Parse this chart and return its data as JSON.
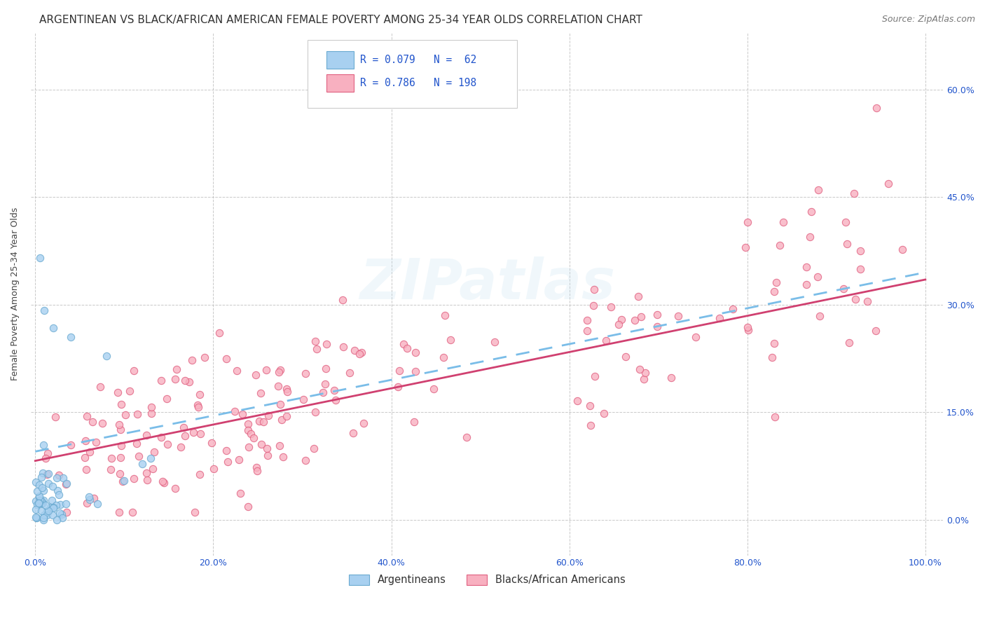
{
  "title": "ARGENTINEAN VS BLACK/AFRICAN AMERICAN FEMALE POVERTY AMONG 25-34 YEAR OLDS CORRELATION CHART",
  "source": "Source: ZipAtlas.com",
  "ylabel_label": "Female Poverty Among 25-34 Year Olds",
  "legend_labels": [
    "Argentineans",
    "Blacks/African Americans"
  ],
  "R_arg": 0.079,
  "N_arg": 62,
  "R_black": 0.786,
  "N_black": 198,
  "blue_scatter_color": "#A8D0F0",
  "blue_edge_color": "#6AAAD0",
  "pink_scatter_color": "#F8B0C0",
  "pink_edge_color": "#E06080",
  "blue_line_color": "#7ABDE8",
  "pink_line_color": "#D04070",
  "watermark": "ZIPatlas",
  "title_fontsize": 11,
  "axis_label_fontsize": 9,
  "tick_fontsize": 9,
  "source_fontsize": 9,
  "background_color": "#FFFFFF",
  "grid_color": "#BBBBBB",
  "ytick_vals": [
    0.0,
    0.15,
    0.3,
    0.45,
    0.6
  ],
  "ytick_labels": [
    "0.0%",
    "15.0%",
    "30.0%",
    "45.0%",
    "60.0%"
  ],
  "xtick_vals": [
    0.0,
    0.2,
    0.4,
    0.6,
    0.8,
    1.0
  ],
  "xtick_labels": [
    "0.0%",
    "20.0%",
    "40.0%",
    "60.0%",
    "80.0%",
    "100.0%"
  ],
  "ymin": -0.05,
  "ymax": 0.68,
  "xmin": -0.005,
  "xmax": 1.02
}
